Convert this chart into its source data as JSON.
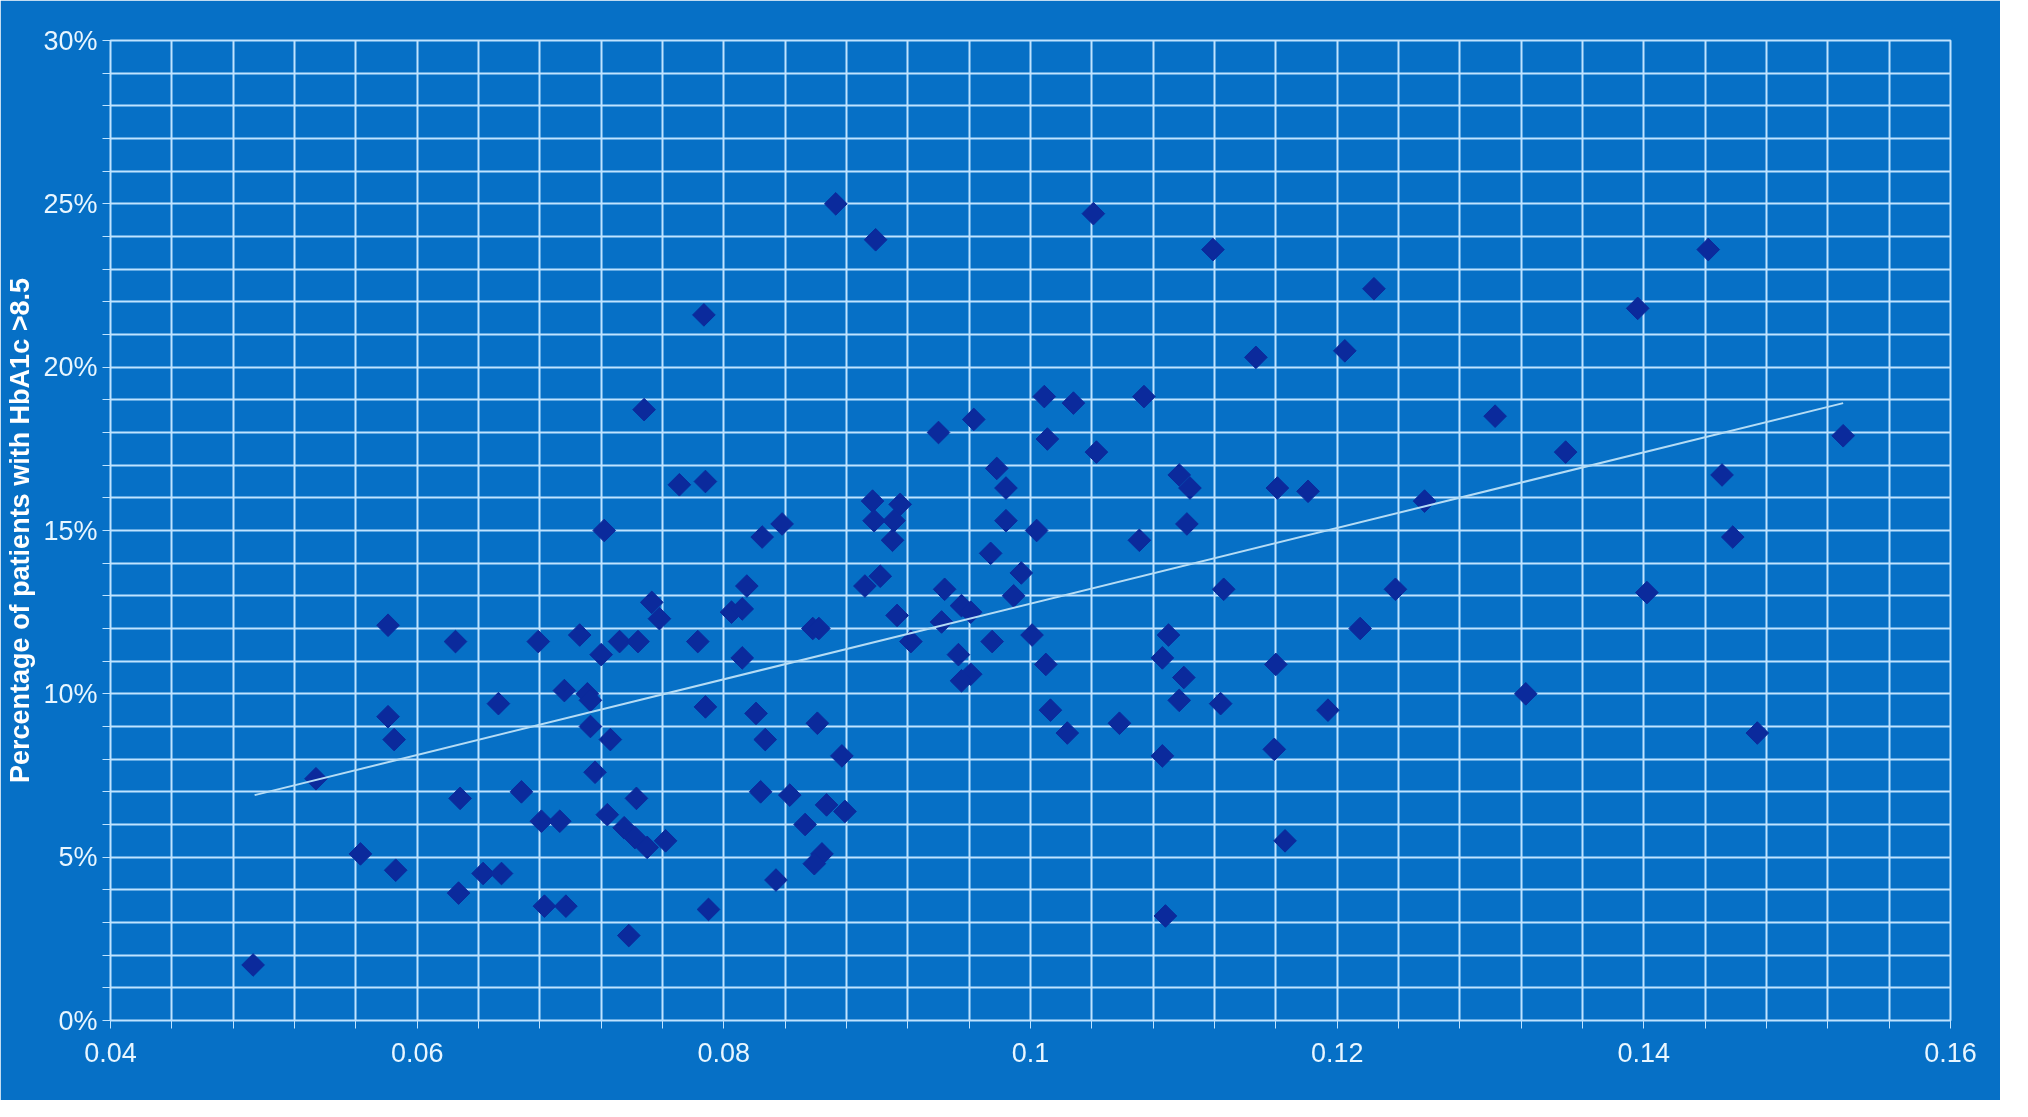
{
  "chart_data": {
    "type": "scatter",
    "ylabel": "Percentage of patients with HbA1c >8.5",
    "marker": "diamond",
    "grid": true,
    "xlim": [
      0.04,
      0.16
    ],
    "xticks": [
      0.04,
      {
        "value": 0.044,
        "label": null
      },
      {
        "value": 0.048,
        "label": null
      },
      {
        "value": 0.052,
        "label": null
      },
      {
        "value": 0.056,
        "label": null
      },
      0.06,
      {
        "value": 0.064,
        "label": null
      },
      {
        "value": 0.068,
        "label": null
      },
      {
        "value": 0.072,
        "label": null
      },
      {
        "value": 0.076,
        "label": null
      },
      0.08,
      {
        "value": 0.084,
        "label": null
      },
      {
        "value": 0.088,
        "label": null
      },
      {
        "value": 0.092,
        "label": null
      },
      {
        "value": 0.096,
        "label": null
      },
      {
        "value": 0.1,
        "label": "0.1"
      },
      {
        "value": 0.104,
        "label": null
      },
      {
        "value": 0.108,
        "label": null
      },
      {
        "value": 0.112,
        "label": null
      },
      {
        "value": 0.116,
        "label": null
      },
      0.12,
      {
        "value": 0.124,
        "label": null
      },
      {
        "value": 0.128,
        "label": null
      },
      {
        "value": 0.132,
        "label": null
      },
      {
        "value": 0.136,
        "label": null
      },
      0.14,
      {
        "value": 0.144,
        "label": null
      },
      {
        "value": 0.148,
        "label": null
      },
      {
        "value": 0.152,
        "label": null
      },
      {
        "value": 0.156,
        "label": null
      },
      0.16
    ],
    "ylim": [
      0,
      30
    ],
    "yticks": [
      {
        "value": 0,
        "label": "0%"
      },
      {
        "value": 1,
        "label": null
      },
      {
        "value": 2,
        "label": null
      },
      {
        "value": 3,
        "label": null
      },
      {
        "value": 4,
        "label": null
      },
      {
        "value": 5,
        "label": "5%"
      },
      {
        "value": 6,
        "label": null
      },
      {
        "value": 7,
        "label": null
      },
      {
        "value": 8,
        "label": null
      },
      {
        "value": 9,
        "label": null
      },
      {
        "value": 10,
        "label": "10%"
      },
      {
        "value": 11,
        "label": null
      },
      {
        "value": 12,
        "label": null
      },
      {
        "value": 13,
        "label": null
      },
      {
        "value": 14,
        "label": null
      },
      {
        "value": 15,
        "label": "15%"
      },
      {
        "value": 16,
        "label": null
      },
      {
        "value": 17,
        "label": null
      },
      {
        "value": 18,
        "label": null
      },
      {
        "value": 19,
        "label": null
      },
      {
        "value": 20,
        "label": "20%"
      },
      {
        "value": 21,
        "label": null
      },
      {
        "value": 22,
        "label": null
      },
      {
        "value": 23,
        "label": null
      },
      {
        "value": 24,
        "label": null
      },
      {
        "value": 25,
        "label": "25%"
      },
      {
        "value": 26,
        "label": null
      },
      {
        "value": 27,
        "label": null
      },
      {
        "value": 28,
        "label": null
      },
      {
        "value": 29,
        "label": null
      },
      {
        "value": 30,
        "label": "30%"
      }
    ],
    "series": [
      {
        "color": "#0b2a9c",
        "x": [
          0.0787,
          0.0748,
          0.0771,
          0.0788,
          0.0722,
          0.0873,
          0.0899,
          0.1041,
          0.1119,
          0.1147,
          0.1009,
          0.1028,
          0.1074,
          0.0963,
          0.094,
          0.1011,
          0.1043,
          0.0978,
          0.1097,
          0.1104,
          0.0984,
          0.1161,
          0.1181,
          0.0897,
          0.0915,
          0.0898,
          0.0911,
          0.091,
          0.0825,
          0.0838,
          0.0984,
          0.1004,
          0.1102,
          0.1071,
          0.0974,
          0.1442,
          0.1396,
          0.1224,
          0.1205,
          0.1303,
          0.1349,
          0.153,
          0.1451,
          0.1458,
          0.1257,
          0.0753,
          0.0758,
          0.0581,
          0.0625,
          0.0679,
          0.0706,
          0.072,
          0.0732,
          0.0744,
          0.0783,
          0.0696,
          0.0711,
          0.0713,
          0.0653,
          0.0788,
          0.0581,
          0.0585,
          0.0713,
          0.0726,
          0.0534,
          0.0716,
          0.0668,
          0.0628,
          0.0743,
          0.0681,
          0.0693,
          0.0724,
          0.0735,
          0.0742,
          0.075,
          0.0762,
          0.0563,
          0.0586,
          0.0643,
          0.0655,
          0.0627,
          0.0683,
          0.0697,
          0.0738,
          0.079,
          0.0493,
          0.0815,
          0.0805,
          0.0812,
          0.0812,
          0.0858,
          0.0862,
          0.0892,
          0.0902,
          0.0913,
          0.0922,
          0.0944,
          0.0942,
          0.0955,
          0.0961,
          0.0953,
          0.0961,
          0.0955,
          0.0975,
          0.0994,
          0.0989,
          0.1001,
          0.101,
          0.1013,
          0.1024,
          0.1058,
          0.109,
          0.1086,
          0.11,
          0.1097,
          0.1126,
          0.1124,
          0.116,
          0.1159,
          0.1194,
          0.1086,
          0.1166,
          0.1088,
          0.0821,
          0.0827,
          0.0861,
          0.0877,
          0.0824,
          0.0843,
          0.0867,
          0.0879,
          0.0853,
          0.0864,
          0.0859,
          0.0834,
          0.1238,
          0.1215,
          0.1402,
          0.1323,
          0.1474
        ],
        "values": [
          21.6,
          18.7,
          16.4,
          16.5,
          15.0,
          25.0,
          23.9,
          24.7,
          23.6,
          20.3,
          19.1,
          18.9,
          19.1,
          18.4,
          18.0,
          17.8,
          17.4,
          16.9,
          16.7,
          16.3,
          16.3,
          16.3,
          16.2,
          15.9,
          15.8,
          15.3,
          15.3,
          14.7,
          14.8,
          15.2,
          15.3,
          15.0,
          15.2,
          14.7,
          14.3,
          23.6,
          21.8,
          22.4,
          20.5,
          18.5,
          17.4,
          17.9,
          16.7,
          14.8,
          15.9,
          12.8,
          12.3,
          12.1,
          11.6,
          11.6,
          11.8,
          11.2,
          11.6,
          11.6,
          11.6,
          10.1,
          10.0,
          9.8,
          9.7,
          9.6,
          9.3,
          8.6,
          9.0,
          8.6,
          7.4,
          7.6,
          7.0,
          6.8,
          6.8,
          6.1,
          6.1,
          6.3,
          5.9,
          5.6,
          5.3,
          5.5,
          5.1,
          4.6,
          4.5,
          4.5,
          3.9,
          3.5,
          3.5,
          2.6,
          3.4,
          1.7,
          13.3,
          12.5,
          12.6,
          11.1,
          12.0,
          12.0,
          13.3,
          13.6,
          12.4,
          11.6,
          13.2,
          12.2,
          12.7,
          12.5,
          11.2,
          10.6,
          10.4,
          11.6,
          13.7,
          13.0,
          11.8,
          10.9,
          9.5,
          8.8,
          9.1,
          11.8,
          11.1,
          10.5,
          9.8,
          13.2,
          9.7,
          10.9,
          8.3,
          9.5,
          8.1,
          5.5,
          3.2,
          9.4,
          8.6,
          9.1,
          8.1,
          7.0,
          6.9,
          6.6,
          6.4,
          6.0,
          5.1,
          4.8,
          4.3,
          13.2,
          12.0,
          13.1,
          10.0,
          8.8
        ]
      },
      {
        "type": "line",
        "marker": "none",
        "color": "#b4dcf5",
        "x": [
          0.0494,
          0.153
        ],
        "values": [
          6.9,
          18.9
        ]
      }
    ]
  }
}
